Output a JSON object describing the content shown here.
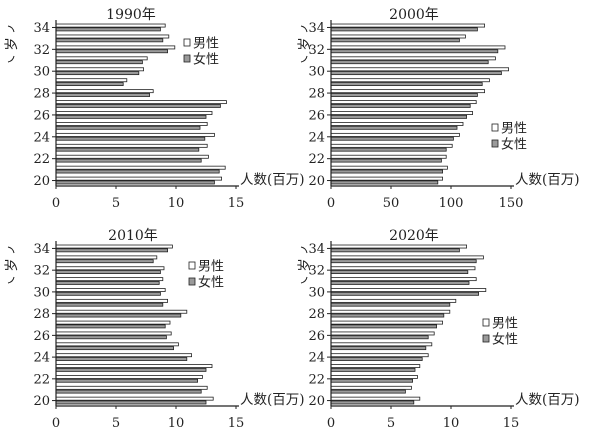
{
  "chart_data": [
    {
      "type": "bar",
      "orientation": "horizontal",
      "title": "1990年",
      "ylabel": "岁",
      "xlabel": "人数(百万)",
      "ages": [
        20,
        21,
        22,
        23,
        24,
        25,
        26,
        27,
        28,
        29,
        30,
        31,
        32,
        33,
        34
      ],
      "yticks": [
        "20",
        "22",
        "24",
        "26",
        "28",
        "30",
        "32",
        "34"
      ],
      "xticks": [
        "0",
        "5",
        "10",
        "15"
      ],
      "xlim": [
        0,
        15
      ],
      "legend_position": "upper-right",
      "series": [
        {
          "name": "男性",
          "values": [
            13.8,
            14.1,
            12.7,
            12.6,
            13.2,
            12.6,
            13.0,
            14.2,
            8.1,
            5.9,
            7.3,
            7.6,
            9.9,
            9.4,
            9.1
          ]
        },
        {
          "name": "女性",
          "values": [
            13.2,
            13.6,
            12.1,
            11.9,
            12.4,
            12.0,
            12.5,
            13.7,
            7.8,
            5.6,
            6.9,
            7.2,
            9.3,
            8.9,
            8.7
          ]
        }
      ]
    },
    {
      "type": "bar",
      "orientation": "horizontal",
      "title": "2000年",
      "ylabel": "岁",
      "xlabel": "人数(百万)",
      "ages": [
        20,
        21,
        22,
        23,
        24,
        25,
        26,
        27,
        28,
        29,
        30,
        31,
        32,
        33,
        34
      ],
      "yticks": [
        "20",
        "22",
        "24",
        "26",
        "28",
        "30",
        "32",
        "34"
      ],
      "xticks": [
        "0",
        "50",
        "100",
        "150"
      ],
      "xlim": [
        0,
        150
      ],
      "legend_position": "lower-right",
      "series": [
        {
          "name": "男性",
          "values": [
            93,
            97,
            96,
            101,
            107,
            110,
            118,
            121,
            128,
            132,
            148,
            137,
            145,
            112,
            128
          ]
        },
        {
          "name": "女性",
          "values": [
            89,
            93,
            92,
            96,
            102,
            105,
            113,
            116,
            122,
            126,
            142,
            131,
            139,
            107,
            122
          ]
        }
      ]
    },
    {
      "type": "bar",
      "orientation": "horizontal",
      "title": "2010年",
      "ylabel": "岁",
      "xlabel": "人数(百万)",
      "ages": [
        20,
        21,
        22,
        23,
        24,
        25,
        26,
        27,
        28,
        29,
        30,
        31,
        32,
        33,
        34
      ],
      "yticks": [
        "20",
        "22",
        "24",
        "26",
        "28",
        "30",
        "32",
        "34"
      ],
      "xticks": [
        "0",
        "5",
        "10",
        "15"
      ],
      "xlim": [
        0,
        15
      ],
      "legend_position": "upper-right",
      "series": [
        {
          "name": "男性",
          "values": [
            13.1,
            12.6,
            12.2,
            13.0,
            11.3,
            10.2,
            9.6,
            9.5,
            10.9,
            9.3,
            9.1,
            8.9,
            9.0,
            8.4,
            9.7
          ]
        },
        {
          "name": "女性",
          "values": [
            12.5,
            12.1,
            11.8,
            12.5,
            10.9,
            9.8,
            9.2,
            9.1,
            10.4,
            8.9,
            8.7,
            8.6,
            8.7,
            8.1,
            9.3
          ]
        }
      ]
    },
    {
      "type": "bar",
      "orientation": "horizontal",
      "title": "2020年",
      "ylabel": "岁",
      "xlabel": "人数(百万)",
      "ages": [
        20,
        21,
        22,
        23,
        24,
        25,
        26,
        27,
        28,
        29,
        30,
        31,
        32,
        33,
        34
      ],
      "yticks": [
        "20",
        "22",
        "24",
        "26",
        "28",
        "30",
        "32",
        "34"
      ],
      "xticks": [
        "0",
        "5",
        "10",
        "15"
      ],
      "xlim": [
        0,
        15
      ],
      "legend_position": "lower-right",
      "series": [
        {
          "name": "男性",
          "values": [
            7.4,
            6.7,
            7.2,
            7.4,
            8.1,
            8.4,
            8.6,
            9.3,
            9.9,
            10.4,
            12.9,
            12.1,
            12.0,
            12.7,
            11.3
          ]
        },
        {
          "name": "女性",
          "values": [
            6.9,
            6.2,
            6.8,
            7.0,
            7.6,
            7.9,
            8.1,
            8.8,
            9.4,
            9.9,
            12.3,
            11.5,
            11.4,
            12.1,
            10.7
          ]
        }
      ]
    }
  ]
}
